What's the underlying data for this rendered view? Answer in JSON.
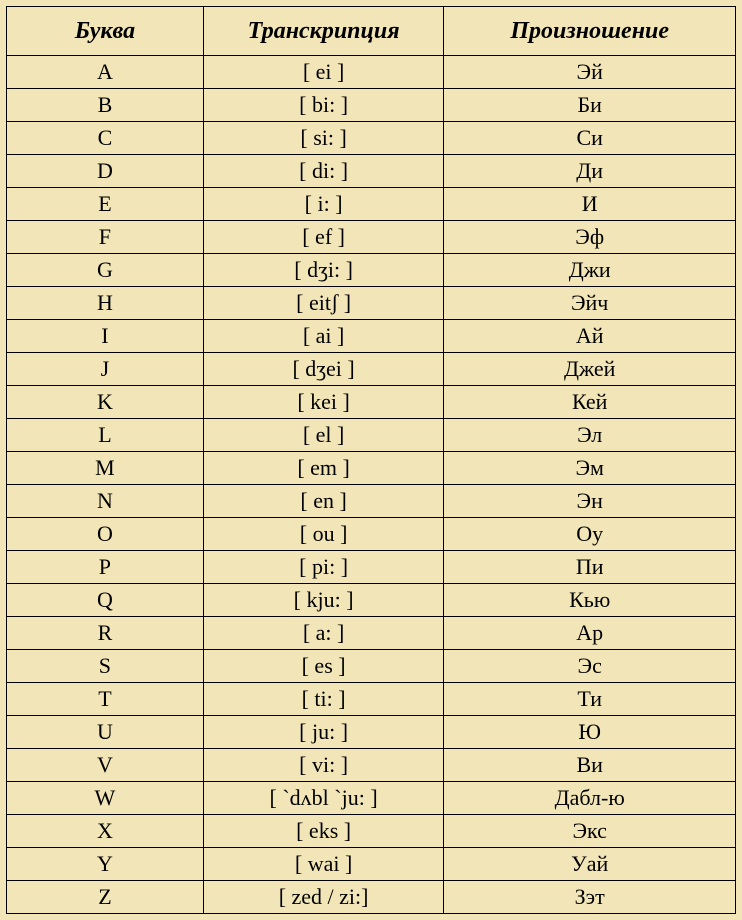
{
  "type": "table",
  "background_color": "#f2e6b8",
  "border_color": "#000000",
  "text_color": "#000000",
  "font_family": "Times New Roman",
  "header_fontsize": 24,
  "cell_fontsize": 22,
  "header_style": "bold italic",
  "column_widths_pct": [
    27,
    33,
    40
  ],
  "columns": [
    "Буква",
    "Транскрипция",
    "Произношение"
  ],
  "rows": [
    [
      "A",
      "[ ei ]",
      "Эй"
    ],
    [
      "B",
      "[ bi: ]",
      "Би"
    ],
    [
      "C",
      "[ si: ]",
      "Си"
    ],
    [
      "D",
      "[ di: ]",
      "Ди"
    ],
    [
      "E",
      "[ i: ]",
      "И"
    ],
    [
      "F",
      "[ ef ]",
      "Эф"
    ],
    [
      "G",
      "[ dʒi: ]",
      "Джи"
    ],
    [
      "H",
      "[ eitʃ ]",
      "Эйч"
    ],
    [
      "I",
      "[ ai ]",
      "Ай"
    ],
    [
      "J",
      "[ dʒei ]",
      "Джей"
    ],
    [
      "K",
      "[ kei ]",
      "Кей"
    ],
    [
      "L",
      "[ el ]",
      "Эл"
    ],
    [
      "M",
      "[ em ]",
      "Эм"
    ],
    [
      "N",
      "[ en ]",
      "Эн"
    ],
    [
      "O",
      "[ ou ]",
      "Оу"
    ],
    [
      "P",
      "[ pi: ]",
      "Пи"
    ],
    [
      "Q",
      "[ kju: ]",
      "Кью"
    ],
    [
      "R",
      "[ a: ]",
      "Ар"
    ],
    [
      "S",
      "[ es ]",
      "Эс"
    ],
    [
      "T",
      "[ ti: ]",
      "Ти"
    ],
    [
      "U",
      "[ ju: ]",
      "Ю"
    ],
    [
      "V",
      "[ vi: ]",
      "Ви"
    ],
    [
      "W",
      "[ `dʌbl `ju: ]",
      "Дабл-ю"
    ],
    [
      "X",
      "[ eks ]",
      "Экс"
    ],
    [
      "Y",
      "[ wai ]",
      "Уай"
    ],
    [
      "Z",
      "[ zed / zi:]",
      "Зэт"
    ]
  ]
}
